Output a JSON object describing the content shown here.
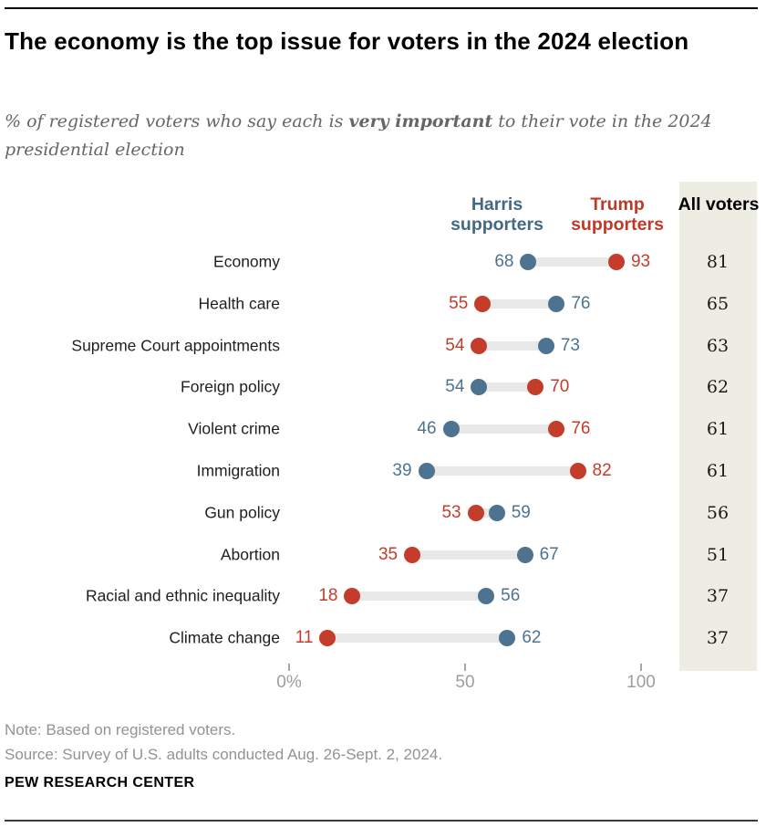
{
  "header": {
    "title": "The economy is the top issue for voters in the 2024 election",
    "subtitle_pre": "% of registered voters who say each is ",
    "subtitle_bold": "very important",
    "subtitle_post": " to their vote in the 2024 presidential election"
  },
  "legend": {
    "harris_label": "Harris supporters",
    "trump_label": "Trump supporters",
    "all_label": "All voters"
  },
  "colors": {
    "harris_text": "#436983",
    "harris_dot": "#4d7391",
    "trump_text": "#bf3927",
    "trump_dot": "#c33d2a",
    "connector_bar": "#e8e8e8",
    "all_column_bg": "#eeede3",
    "axis_gray": "#9d9d9d"
  },
  "chart_data": {
    "type": "dumbbell",
    "title": "The economy is the top issue for voters in the 2024 election",
    "subtitle": "% of registered voters who say each is very important to their vote in the 2024 presidential election",
    "categories": [
      "Economy",
      "Health care",
      "Supreme Court appointments",
      "Foreign policy",
      "Violent crime",
      "Immigration",
      "Gun policy",
      "Abortion",
      "Racial and ethnic inequality",
      "Climate change"
    ],
    "series": [
      {
        "name": "Harris supporters",
        "values": [
          68,
          76,
          73,
          54,
          46,
          39,
          59,
          67,
          56,
          62
        ]
      },
      {
        "name": "Trump supporters",
        "values": [
          93,
          55,
          54,
          70,
          76,
          82,
          53,
          35,
          18,
          11
        ]
      },
      {
        "name": "All voters",
        "values": [
          81,
          65,
          63,
          62,
          61,
          61,
          56,
          51,
          37,
          37
        ]
      }
    ],
    "xlim": [
      0,
      100
    ],
    "x_tick_values": [
      0,
      50,
      100
    ],
    "x_tick_labels": [
      "0%",
      "50",
      "100"
    ],
    "legend_position": "top",
    "grid": false
  },
  "footer": {
    "note": "Note: Based on registered voters.",
    "source": "Source: Survey of U.S. adults conducted Aug. 26-Sept. 2, 2024.",
    "brand": "PEW RESEARCH CENTER"
  }
}
